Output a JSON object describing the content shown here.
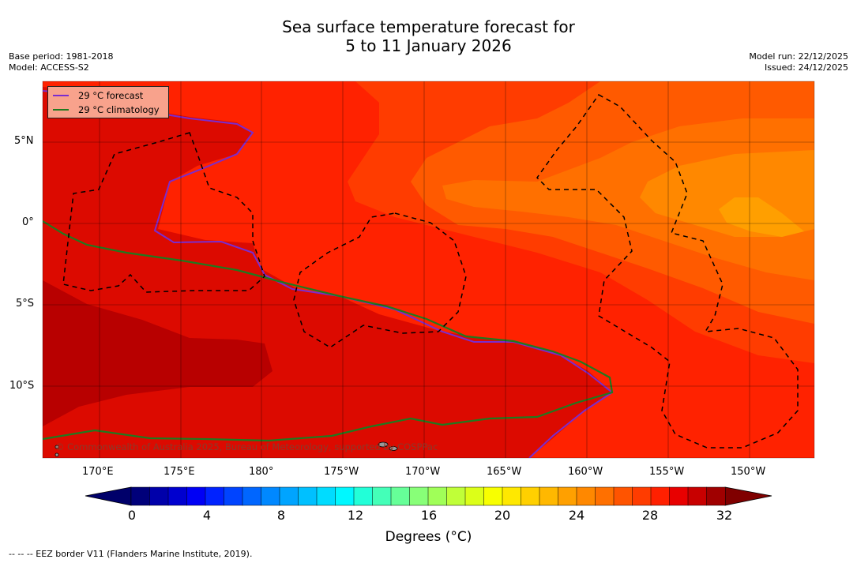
{
  "title": "Sea surface temperature forecast for\n5 to 11 January 2026",
  "meta_left": {
    "base_period": "Base period: 1981-2018",
    "model": "Model: ACCESS-S2"
  },
  "meta_right": {
    "model_run": "Model run: 22/12/2025",
    "issued": "Issued: 24/12/2025"
  },
  "legend": {
    "forecast": {
      "label": "29 °C  forecast",
      "color": "#7a2ccf"
    },
    "climatology": {
      "label": "29 °C  climatology",
      "color": "#1f7a1f"
    }
  },
  "lat_ticks": [
    "5°N",
    "0°",
    "5°S",
    "10°S"
  ],
  "lon_ticks": [
    "170°E",
    "175°E",
    "180°",
    "175°W",
    "170°W",
    "165°W",
    "160°W",
    "155°W",
    "150°W"
  ],
  "copyright": "© Commonwealth of Australia 2025, Bureau of Meteorology, supported by COSPPac",
  "colorbar": {
    "labels": [
      "0",
      "4",
      "8",
      "12",
      "16",
      "20",
      "24",
      "28",
      "32"
    ],
    "colors": [
      "#00007a",
      "#0000aa",
      "#0000cf",
      "#0000f5",
      "#0022ff",
      "#0044ff",
      "#0066ff",
      "#0088ff",
      "#00a4ff",
      "#00c0ff",
      "#00dcff",
      "#00f8ff",
      "#22ffd8",
      "#44ffb8",
      "#66ff98",
      "#88ff78",
      "#a0ff58",
      "#c0ff38",
      "#dcff18",
      "#f8ff00",
      "#ffe800",
      "#ffd000",
      "#ffb800",
      "#ffa000",
      "#ff8800",
      "#ff7000",
      "#ff5400",
      "#ff3c00",
      "#ff2000",
      "#e80000",
      "#c80000",
      "#a00000"
    ],
    "title": "Degrees ($^\\circ$C)",
    "title_display": "Degrees (°C)"
  },
  "sst_colors": {
    "c30": "#dc0a00",
    "c29": "#ff2200",
    "c28": "#ff3c00",
    "c27": "#ff5a00",
    "c26": "#ff7000",
    "c25": "#ff8800",
    "c31": "#c00000"
  },
  "footnote": "--  --  -- EEZ border V11 (Flanders Marine Institute, 2019)."
}
